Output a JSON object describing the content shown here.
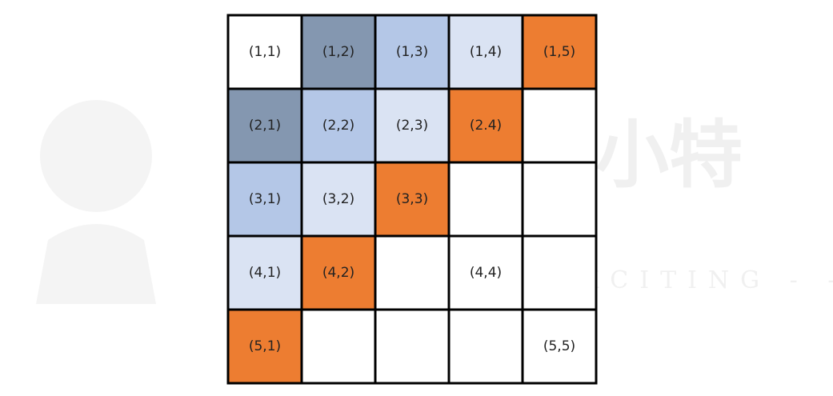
{
  "watermark": {
    "title": "莫小特",
    "slogan": "ING IS EXCITING - -"
  },
  "grid": {
    "rows": [
      [
        {
          "label": "(1,1)",
          "fill": "#ffffff"
        },
        {
          "label": "(1,2)",
          "fill": "#8497b0"
        },
        {
          "label": "(1,3)",
          "fill": "#b4c7e7"
        },
        {
          "label": "(1,4)",
          "fill": "#dae3f3"
        },
        {
          "label": "(1,5)",
          "fill": "#ed7d31"
        }
      ],
      [
        {
          "label": "(2,1)",
          "fill": "#8497b0"
        },
        {
          "label": "(2,2)",
          "fill": "#b4c7e7"
        },
        {
          "label": "(2,3)",
          "fill": "#dae3f3"
        },
        {
          "label": "(2.4)",
          "fill": "#ed7d31"
        },
        {
          "label": null,
          "fill": "#ffffff"
        }
      ],
      [
        {
          "label": "(3,1)",
          "fill": "#b4c7e7"
        },
        {
          "label": "(3,2)",
          "fill": "#dae3f3"
        },
        {
          "label": "(3,3)",
          "fill": "#ed7d31"
        },
        {
          "label": null,
          "fill": "#ffffff"
        },
        {
          "label": null,
          "fill": "#ffffff"
        }
      ],
      [
        {
          "label": "(4,1)",
          "fill": "#dae3f3"
        },
        {
          "label": "(4,2)",
          "fill": "#ed7d31"
        },
        {
          "label": null,
          "fill": "#ffffff"
        },
        {
          "label": "(4,4)",
          "fill": "#ffffff"
        },
        {
          "label": null,
          "fill": "#ffffff"
        }
      ],
      [
        {
          "label": "(5,1)",
          "fill": "#ed7d31"
        },
        {
          "label": null,
          "fill": "#ffffff"
        },
        {
          "label": null,
          "fill": "#ffffff"
        },
        {
          "label": null,
          "fill": "#ffffff"
        },
        {
          "label": "(5,5)",
          "fill": "#ffffff"
        }
      ]
    ]
  }
}
